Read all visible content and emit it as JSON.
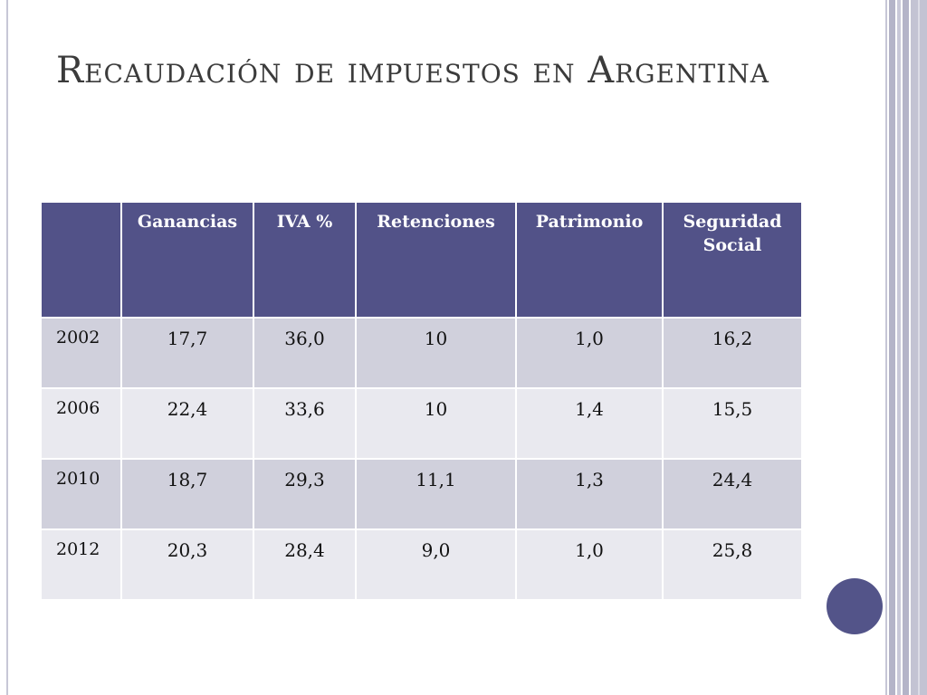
{
  "slide": {
    "title": "Recaudación de impuestos en Argentina"
  },
  "table": {
    "headers": [
      "",
      "Ganancias",
      "IVA %",
      "Retenciones",
      "Patrimonio",
      "Seguridad Social"
    ],
    "rows": [
      {
        "year": "2002",
        "values": [
          "17,7",
          "36,0",
          "10",
          "1,0",
          "16,2"
        ]
      },
      {
        "year": "2006",
        "values": [
          "22,4",
          "33,6",
          "10",
          "1,4",
          "15,5"
        ]
      },
      {
        "year": "2010",
        "values": [
          "18,7",
          "29,3",
          "11,1",
          "1,3",
          "24,4"
        ]
      },
      {
        "year": "2012",
        "values": [
          "20,3",
          "28,4",
          "9,0",
          "1,0",
          "25,8"
        ]
      }
    ]
  },
  "colors": {
    "header_bg": "#525288",
    "row_odd_bg": "#d0d0dc",
    "row_even_bg": "#e9e9ef",
    "accent_circle": "#535489"
  }
}
